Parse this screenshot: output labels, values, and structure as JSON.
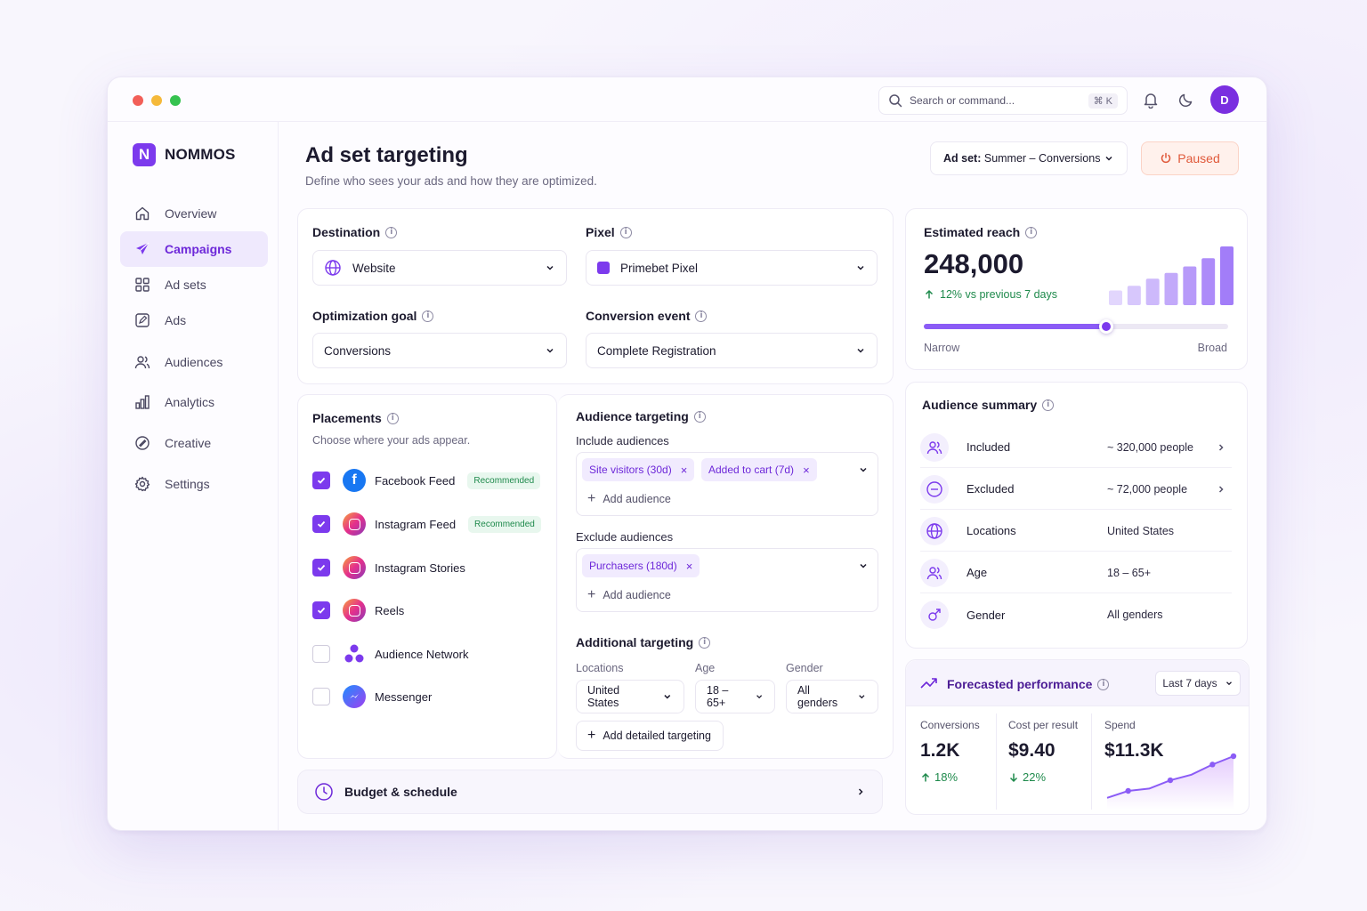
{
  "app": {
    "brand": "NOMMOS",
    "brand_mark": "N"
  },
  "topbar": {
    "search_placeholder": "Search or command...",
    "search_shortcut": "⌘ K",
    "avatar_initial": "D"
  },
  "sidebar": {
    "items": [
      {
        "label": "Overview",
        "icon": "home-icon"
      },
      {
        "label": "Campaigns",
        "icon": "send-icon",
        "active": true
      },
      {
        "label": "Ad sets",
        "icon": "grid-icon"
      },
      {
        "label": "Ads",
        "icon": "edit-square-icon"
      },
      {
        "label": "Audiences",
        "icon": "users-icon"
      },
      {
        "label": "Analytics",
        "icon": "bar-chart-icon"
      },
      {
        "label": "Creative",
        "icon": "palette-icon"
      },
      {
        "label": "Settings",
        "icon": "gear-icon"
      }
    ]
  },
  "header": {
    "title": "Ad set targeting",
    "subtitle": "Define who sees your ads and how they are optimized.",
    "adset_prefix": "Ad set:",
    "adset_name": "Summer – Conversions",
    "status": "Paused"
  },
  "settings": {
    "destination_label": "Destination",
    "destination_value": "Website",
    "pixel_label": "Pixel",
    "pixel_value": "Primebet Pixel",
    "goal_label": "Optimization goal",
    "goal_value": "Conversions",
    "event_label": "Conversion event",
    "event_value": "Complete Registration"
  },
  "placements": {
    "title": "Placements",
    "subtitle": "Choose where your ads appear.",
    "items": [
      {
        "label": "Facebook Feed",
        "checked": true,
        "badge": "Recommended"
      },
      {
        "label": "Instagram Feed",
        "checked": true,
        "badge": "Recommended"
      },
      {
        "label": "Instagram Stories",
        "checked": true
      },
      {
        "label": "Reels",
        "checked": true
      },
      {
        "label": "Audience Network",
        "checked": false
      },
      {
        "label": "Messenger",
        "checked": false
      }
    ]
  },
  "audience_targeting": {
    "title": "Audience targeting",
    "include_label": "Include audiences",
    "include_chips": [
      "Site visitors (30d)",
      "Added to cart (7d)"
    ],
    "exclude_label": "Exclude audiences",
    "exclude_chips": [
      "Purchasers (180d)"
    ],
    "add_label": "Add audience"
  },
  "additional": {
    "title": "Additional targeting",
    "locations_label": "Locations",
    "locations_value": "United States",
    "age_label": "Age",
    "age_value": "18 – 65+",
    "gender_label": "Gender",
    "gender_value": "All genders",
    "add_detailed": "Add detailed targeting"
  },
  "budget": {
    "label": "Budget & schedule"
  },
  "reach": {
    "title": "Estimated reach",
    "value": "248,000",
    "change": "12% vs previous 7 days",
    "slider_position": 0.6,
    "narrow": "Narrow",
    "broad": "Broad",
    "bars": [
      0.25,
      0.33,
      0.45,
      0.55,
      0.66,
      0.8,
      1.0
    ]
  },
  "audience_summary": {
    "title": "Audience summary",
    "rows": [
      {
        "label": "Included",
        "value": "~ 320,000 people",
        "arrow": true
      },
      {
        "label": "Excluded",
        "value": "~ 72,000 people",
        "arrow": true
      },
      {
        "label": "Locations",
        "value": "United States"
      },
      {
        "label": "Age",
        "value": "18 – 65+"
      },
      {
        "label": "Gender",
        "value": "All genders"
      }
    ]
  },
  "forecast": {
    "title": "Forecasted performance",
    "range": "Last 7 days",
    "metrics": [
      {
        "label": "Conversions",
        "value": "1.2K",
        "change": "18%",
        "direction": "up"
      },
      {
        "label": "Cost per result",
        "value": "$9.40",
        "change": "22%",
        "direction": "down"
      },
      {
        "label": "Spend",
        "value": "$11.3K"
      }
    ],
    "spark": [
      0.1,
      0.25,
      0.3,
      0.48,
      0.6,
      0.82,
      1.0
    ]
  },
  "colors": {
    "accent": "#7c3aed",
    "positive": "#1f8a4c",
    "paused": "#e0593a"
  }
}
